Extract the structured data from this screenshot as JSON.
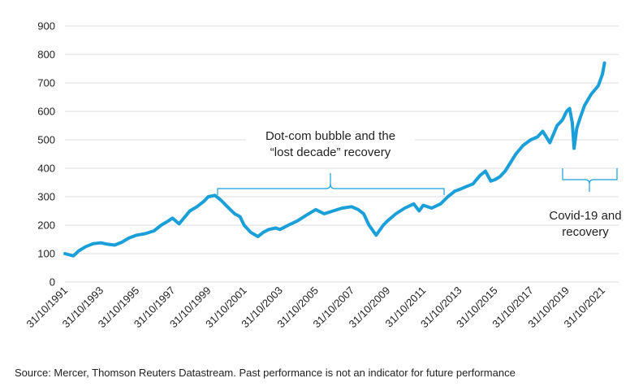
{
  "chart_data": {
    "type": "line",
    "title": "",
    "xlabel": "",
    "ylabel": "",
    "ylim": [
      0,
      900
    ],
    "yticks": [
      0,
      100,
      200,
      300,
      400,
      500,
      600,
      700,
      800,
      900
    ],
    "xticks": [
      "31/10/1991",
      "31/10/1993",
      "31/10/1995",
      "31/10/1997",
      "31/10/1999",
      "31/10/2001",
      "31/10/2003",
      "31/10/2005",
      "31/10/2007",
      "31/10/2009",
      "31/10/2011",
      "31/10/2013",
      "31/10/2015",
      "31/10/2017",
      "31/10/2019",
      "31/10/2021"
    ],
    "grid": "horizontal",
    "line_color": "#1a9fd9",
    "series": [
      {
        "x": [
          1991.83,
          1992.3,
          1992.6,
          1993.0,
          1993.4,
          1993.83,
          1994.2,
          1994.6,
          1995.0,
          1995.4,
          1995.83,
          1996.3,
          1996.8,
          1997.2,
          1997.6,
          1997.83,
          1998.2,
          1998.6,
          1998.8,
          1999.2,
          1999.6,
          1999.83,
          2000.2,
          2000.5,
          2000.9,
          2001.3,
          2001.6,
          2001.83,
          2002.2,
          2002.6,
          2002.9,
          2003.2,
          2003.6,
          2003.83,
          2004.3,
          2004.8,
          2005.3,
          2005.83,
          2006.3,
          2006.8,
          2007.3,
          2007.83,
          2008.2,
          2008.5,
          2008.8,
          2009.2,
          2009.6,
          2009.83,
          2010.3,
          2010.8,
          2011.3,
          2011.6,
          2011.83,
          2012.3,
          2012.8,
          2013.2,
          2013.6,
          2013.83,
          2014.2,
          2014.6,
          2015.0,
          2015.3,
          2015.6,
          2015.83,
          2016.1,
          2016.4,
          2016.7,
          2017.0,
          2017.4,
          2017.83,
          2018.2,
          2018.5,
          2018.9,
          2019.3,
          2019.6,
          2019.83,
          2020.0,
          2020.15,
          2020.25,
          2020.4,
          2020.6,
          2020.83,
          2021.2,
          2021.6,
          2021.83,
          2021.95
        ],
        "values": [
          100,
          92,
          110,
          125,
          135,
          138,
          133,
          130,
          140,
          155,
          165,
          170,
          180,
          200,
          215,
          225,
          205,
          235,
          250,
          265,
          285,
          300,
          305,
          290,
          265,
          240,
          230,
          200,
          175,
          160,
          175,
          185,
          190,
          185,
          200,
          215,
          235,
          255,
          240,
          250,
          260,
          265,
          255,
          240,
          200,
          165,
          200,
          215,
          240,
          260,
          275,
          250,
          270,
          260,
          275,
          300,
          320,
          325,
          335,
          345,
          375,
          390,
          355,
          360,
          370,
          390,
          420,
          450,
          480,
          500,
          510,
          530,
          490,
          550,
          570,
          600,
          610,
          560,
          470,
          540,
          580,
          620,
          660,
          690,
          730,
          770
        ]
      }
    ],
    "annotations": {
      "dotcom_line1": "Dot-com bubble and the",
      "dotcom_line2": "“lost decade” recovery",
      "covid_line1": "Covid-19 and",
      "covid_line2": "recovery"
    }
  },
  "source_note": "Source: Mercer, Thomson Reuters Datastream. Past performance is not an indicator for future performance"
}
